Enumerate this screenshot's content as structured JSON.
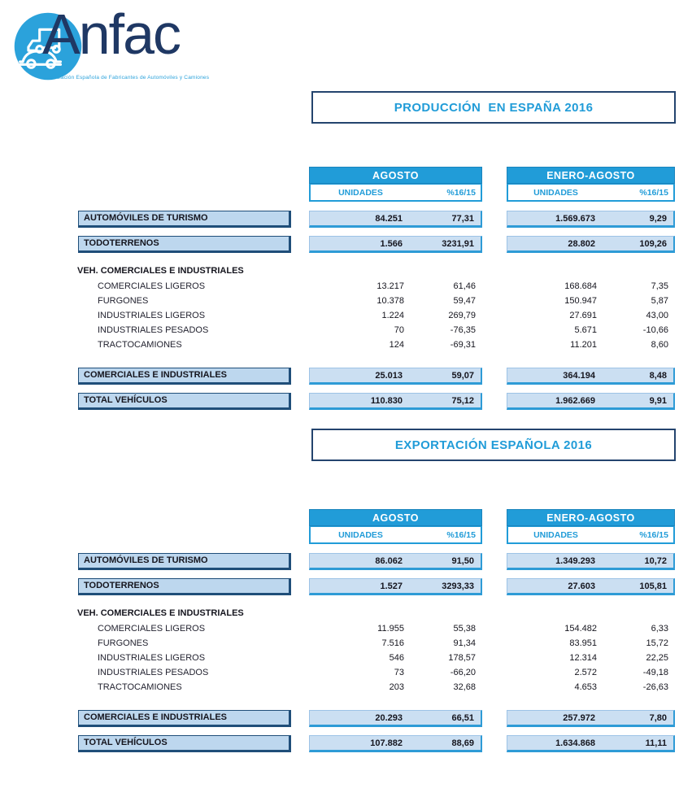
{
  "logo": {
    "brand": "Anfac",
    "tagline": "Asociación Española de Fabricantes de Automóviles y Camiones"
  },
  "colors": {
    "accent_blue": "#219CD8",
    "navy": "#1F3864",
    "label_fill": "#BDD7EE",
    "value_fill": "#CBDFF2",
    "value_border": "#2E9BD6",
    "box_border": "#1F4E79"
  },
  "tables": [
    {
      "title": "PRODUCCIÓN  EN ESPAÑA 2016",
      "groups": [
        {
          "label": "AGOSTO"
        },
        {
          "label": "ENERO-AGOSTO"
        }
      ],
      "subheaders": {
        "units": "UNIDADES",
        "pct": "%16/15"
      },
      "rows": [
        {
          "type": "boxed",
          "label": "AUTOMÓVILES DE TURISMO",
          "values": [
            "84.251",
            "77,31",
            "1.569.673",
            "9,29"
          ]
        },
        {
          "type": "boxed",
          "label": "TODOTERRENOS",
          "values": [
            "1.566",
            "3231,91",
            "28.802",
            "109,26"
          ]
        },
        {
          "type": "section",
          "label": "VEH. COMERCIALES E INDUSTRIALES"
        },
        {
          "type": "item",
          "label": "COMERCIALES LIGEROS",
          "values": [
            "13.217",
            "61,46",
            "168.684",
            "7,35"
          ]
        },
        {
          "type": "item",
          "label": "FURGONES",
          "values": [
            "10.378",
            "59,47",
            "150.947",
            "5,87"
          ]
        },
        {
          "type": "item",
          "label": "INDUSTRIALES LIGEROS",
          "values": [
            "1.224",
            "269,79",
            "27.691",
            "43,00"
          ]
        },
        {
          "type": "item",
          "label": "INDUSTRIALES PESADOS",
          "values": [
            "70",
            "-76,35",
            "5.671",
            "-10,66"
          ]
        },
        {
          "type": "item",
          "label": "TRACTOCAMIONES",
          "values": [
            "124",
            "-69,31",
            "11.201",
            "8,60"
          ]
        },
        {
          "type": "boxed",
          "label": "COMERCIALES E INDUSTRIALES",
          "values": [
            "25.013",
            "59,07",
            "364.194",
            "8,48"
          ]
        },
        {
          "type": "boxed",
          "label": "TOTAL VEHÍCULOS",
          "values": [
            "110.830",
            "75,12",
            "1.962.669",
            "9,91"
          ]
        }
      ]
    },
    {
      "title": "EXPORTACIÓN ESPAÑOLA 2016",
      "groups": [
        {
          "label": "AGOSTO"
        },
        {
          "label": "ENERO-AGOSTO"
        }
      ],
      "subheaders": {
        "units": "UNIDADES",
        "pct": "%16/15"
      },
      "rows": [
        {
          "type": "boxed",
          "label": "AUTOMÓVILES DE TURISMO",
          "values": [
            "86.062",
            "91,50",
            "1.349.293",
            "10,72"
          ]
        },
        {
          "type": "boxed",
          "label": "TODOTERRENOS",
          "values": [
            "1.527",
            "3293,33",
            "27.603",
            "105,81"
          ]
        },
        {
          "type": "section",
          "label": "VEH. COMERCIALES E INDUSTRIALES"
        },
        {
          "type": "item",
          "label": "COMERCIALES LIGEROS",
          "values": [
            "11.955",
            "55,38",
            "154.482",
            "6,33"
          ]
        },
        {
          "type": "item",
          "label": "FURGONES",
          "values": [
            "7.516",
            "91,34",
            "83.951",
            "15,72"
          ]
        },
        {
          "type": "item",
          "label": "INDUSTRIALES LIGEROS",
          "values": [
            "546",
            "178,57",
            "12.314",
            "22,25"
          ]
        },
        {
          "type": "item",
          "label": "INDUSTRIALES PESADOS",
          "values": [
            "73",
            "-66,20",
            "2.572",
            "-49,18"
          ]
        },
        {
          "type": "item",
          "label": "TRACTOCAMIONES",
          "values": [
            "203",
            "32,68",
            "4.653",
            "-26,63"
          ]
        },
        {
          "type": "boxed",
          "label": "COMERCIALES E INDUSTRIALES",
          "values": [
            "20.293",
            "66,51",
            "257.972",
            "7,80"
          ]
        },
        {
          "type": "boxed",
          "label": "TOTAL VEHÍCULOS",
          "values": [
            "107.882",
            "88,69",
            "1.634.868",
            "11,11"
          ]
        }
      ]
    }
  ]
}
